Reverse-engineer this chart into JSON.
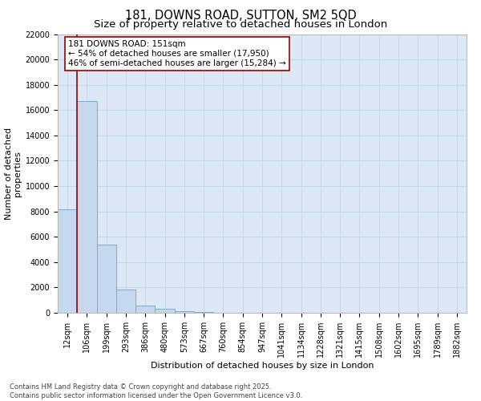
{
  "title1": "181, DOWNS ROAD, SUTTON, SM2 5QD",
  "title2": "Size of property relative to detached houses in London",
  "xlabel": "Distribution of detached houses by size in London",
  "ylabel": "Number of detached\nproperties",
  "categories": [
    "12sqm",
    "106sqm",
    "199sqm",
    "293sqm",
    "386sqm",
    "480sqm",
    "573sqm",
    "667sqm",
    "760sqm",
    "854sqm",
    "947sqm",
    "1041sqm",
    "1134sqm",
    "1228sqm",
    "1321sqm",
    "1415sqm",
    "1508sqm",
    "1602sqm",
    "1695sqm",
    "1789sqm",
    "1882sqm"
  ],
  "values": [
    8150,
    16700,
    5400,
    1850,
    600,
    330,
    130,
    55,
    25,
    12,
    8,
    4,
    3,
    2,
    1,
    1,
    0,
    0,
    0,
    0,
    0
  ],
  "bar_color": "#c5d8ee",
  "bar_edge_color": "#7badd4",
  "background_color": "#dce8f5",
  "grid_color": "#c8d8e8",
  "annotation_text": "181 DOWNS ROAD: 151sqm\n← 54% of detached houses are smaller (17,950)\n46% of semi-detached houses are larger (15,284) →",
  "vline_x_index": 0.5,
  "vline_color": "#990000",
  "annotation_box_color": "#990000",
  "ylim": [
    0,
    22000
  ],
  "yticks": [
    0,
    2000,
    4000,
    6000,
    8000,
    10000,
    12000,
    14000,
    16000,
    18000,
    20000,
    22000
  ],
  "footnote": "Contains HM Land Registry data © Crown copyright and database right 2025.\nContains public sector information licensed under the Open Government Licence v3.0.",
  "title_fontsize": 10.5,
  "subtitle_fontsize": 9.5,
  "axis_label_fontsize": 8,
  "tick_fontsize": 7,
  "annotation_fontsize": 7.5,
  "footnote_fontsize": 6
}
